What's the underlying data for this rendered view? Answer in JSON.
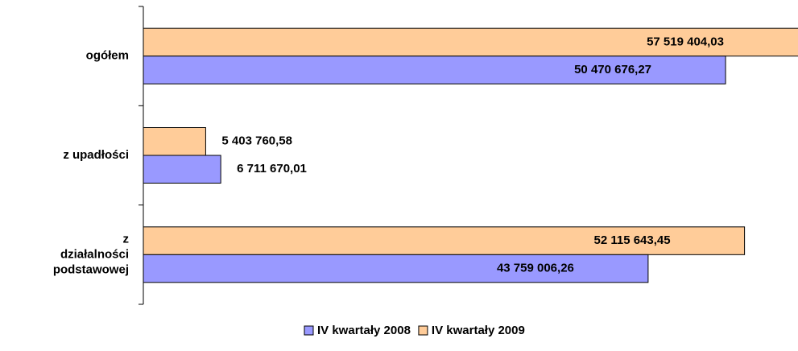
{
  "chart_data": {
    "type": "bar",
    "orientation": "horizontal",
    "categories": [
      "ogółem",
      "z upadłości",
      "z działalności podstawowej"
    ],
    "series": [
      {
        "name": "IV kwartały 2009",
        "color": "#ffcc99",
        "values": [
          57519404.03,
          5403760.58,
          52115643.45
        ],
        "value_labels": [
          "57 519 404,03",
          "5 403 760,58",
          "52 115 643,45"
        ]
      },
      {
        "name": "IV kwartały 2008",
        "color": "#9999ff",
        "values": [
          50470676.27,
          6711670.01,
          43759006.26
        ],
        "value_labels": [
          "50 470 676,27",
          "6 711 670,01",
          "43 759 006,26"
        ]
      }
    ],
    "xlim": [
      0,
      56750000
    ],
    "legend": "bottom"
  }
}
